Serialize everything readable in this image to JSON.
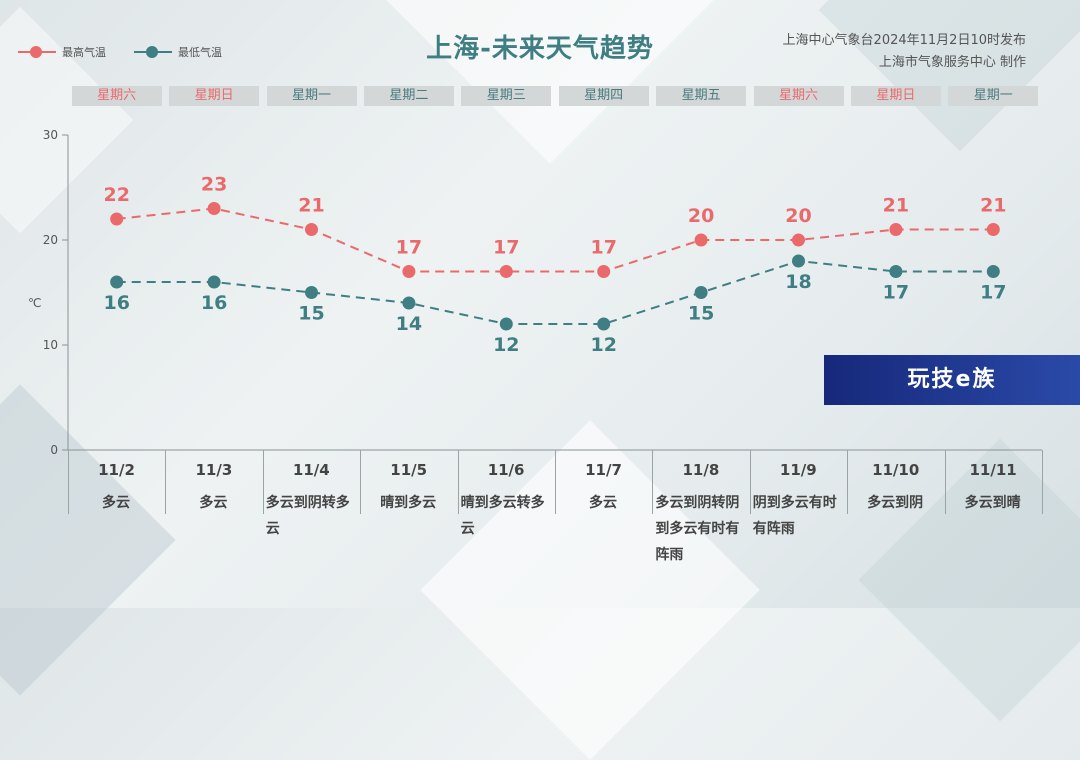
{
  "header": {
    "title": "上海-未来天气趋势",
    "source_line1": "上海中心气象台2024年11月2日10时发布",
    "source_line2": "上海市气象服务中心 制作"
  },
  "legend": {
    "high_label": "最高气温",
    "low_label": "最低气温"
  },
  "weekdays": [
    {
      "label": "星期六",
      "weekend": true
    },
    {
      "label": "星期日",
      "weekend": true
    },
    {
      "label": "星期一",
      "weekend": false
    },
    {
      "label": "星期二",
      "weekend": false
    },
    {
      "label": "星期三",
      "weekend": false
    },
    {
      "label": "星期四",
      "weekend": false
    },
    {
      "label": "星期五",
      "weekend": false
    },
    {
      "label": "星期六",
      "weekend": true
    },
    {
      "label": "星期日",
      "weekend": true
    },
    {
      "label": "星期一",
      "weekend": false
    }
  ],
  "watermark": "玩技e族",
  "colors": {
    "high": "#ea6a6c",
    "low": "#3f7e82",
    "weekend_text": "#ea6a6c",
    "weekday_text": "#4a7b7f"
  },
  "chart_data": {
    "type": "line",
    "title": "上海-未来天气趋势",
    "ylabel": "℃",
    "ylim": [
      0,
      30
    ],
    "yticks": [
      0,
      10,
      20,
      30
    ],
    "categories": [
      "11/2",
      "11/3",
      "11/4",
      "11/5",
      "11/6",
      "11/7",
      "11/8",
      "11/9",
      "11/10",
      "11/11"
    ],
    "weather": [
      "多云",
      "多云",
      "多云到阴转多云",
      "晴到多云",
      "晴到多云转多云",
      "多云",
      "多云到阴转阴到多云有时有阵雨",
      "阴到多云有时有阵雨",
      "多云到阴",
      "多云到晴"
    ],
    "series": [
      {
        "name": "最高气温",
        "values": [
          22,
          23,
          21,
          17,
          17,
          17,
          20,
          20,
          21,
          21
        ]
      },
      {
        "name": "最低气温",
        "values": [
          16,
          16,
          15,
          14,
          12,
          12,
          15,
          18,
          17,
          17
        ]
      }
    ],
    "legend_position": "top-left",
    "grid": false
  }
}
